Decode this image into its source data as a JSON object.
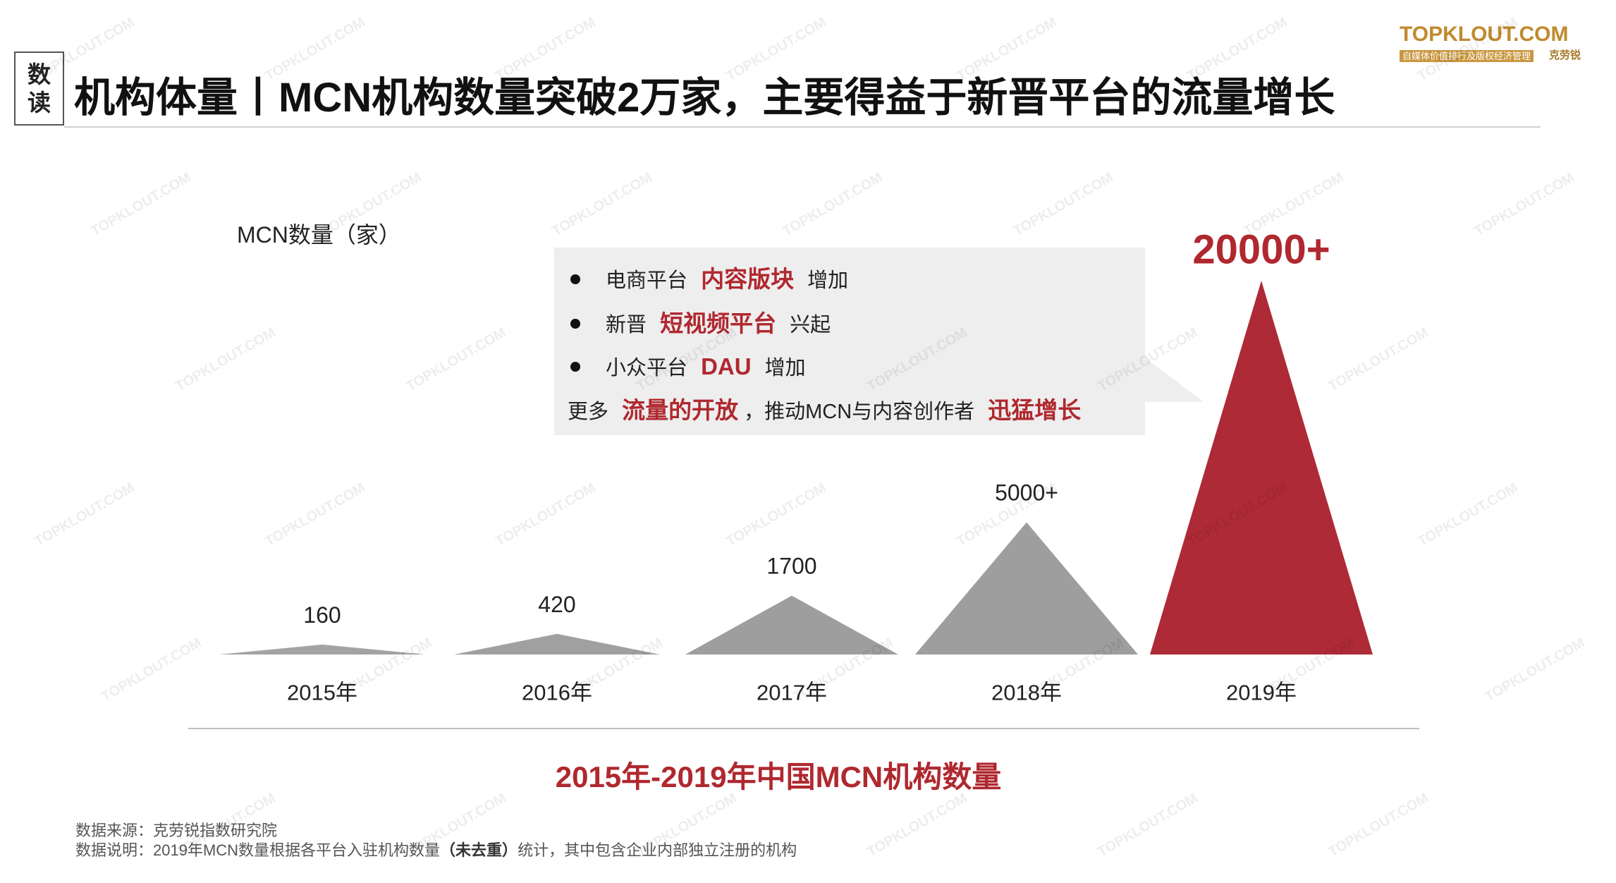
{
  "header": {
    "badge": [
      "数",
      "读"
    ],
    "title": "机构体量丨MCN机构数量突破2万家，主要得益于新晋平台的流量增长"
  },
  "logo": {
    "text": "TOPKLOUT.COM",
    "tagline": "自媒体价值排行及版权经济管理",
    "brand": "克劳锐"
  },
  "watermark": {
    "text": "TOPKLOUT.COM"
  },
  "callout": {
    "lines": [
      {
        "bullet": true,
        "segments": [
          {
            "text": "电商平台",
            "em": false
          },
          {
            "text": "内容版块",
            "em": true
          },
          {
            "text": "增加",
            "em": false
          }
        ]
      },
      {
        "bullet": true,
        "segments": [
          {
            "text": "新晋",
            "em": false
          },
          {
            "text": "短视频平台",
            "em": true
          },
          {
            "text": "兴起",
            "em": false
          }
        ]
      },
      {
        "bullet": true,
        "segments": [
          {
            "text": "小众平台",
            "em": false
          },
          {
            "text": "DAU",
            "em": true
          },
          {
            "text": "增加",
            "em": false
          }
        ]
      },
      {
        "bullet": false,
        "segments": [
          {
            "text": "更多",
            "em": false
          },
          {
            "text": "流量的开放",
            "em": true
          },
          {
            "text": "，推动MCN与内容创作者",
            "em": false
          },
          {
            "text": "迅猛增长",
            "em": true
          }
        ]
      }
    ]
  },
  "chart_data": {
    "type": "bar",
    "title": "2015年-2019年中国MCN机构数量",
    "xlabel": "",
    "ylabel": "MCN数量（家）",
    "categories": [
      "2015年",
      "2016年",
      "2017年",
      "2018年",
      "2019年"
    ],
    "values": [
      160,
      420,
      1700,
      5000,
      20000
    ],
    "value_labels": [
      "160",
      "420",
      "1700",
      "5000+",
      "20000+"
    ],
    "bar_colors": [
      "#a3a3a3",
      "#a0a0a0",
      "#9e9e9e",
      "#9e9e9e",
      "#ae2a36"
    ],
    "grid": false
  },
  "footer": {
    "source": "数据来源：克劳锐指数研究院",
    "note_prefix": "数据说明：2019年MCN数量根据各平台入驻机构数量",
    "note_bold": "（未去重）",
    "note_suffix": "统计，其中包含企业内部独立注册的机构"
  },
  "colors": {
    "accent": "#b0282f",
    "highlight_bar": "#ae2a36",
    "muted": "#555555",
    "callout_bg": "#eeeeee",
    "logo_gold": "#c08a2e"
  }
}
